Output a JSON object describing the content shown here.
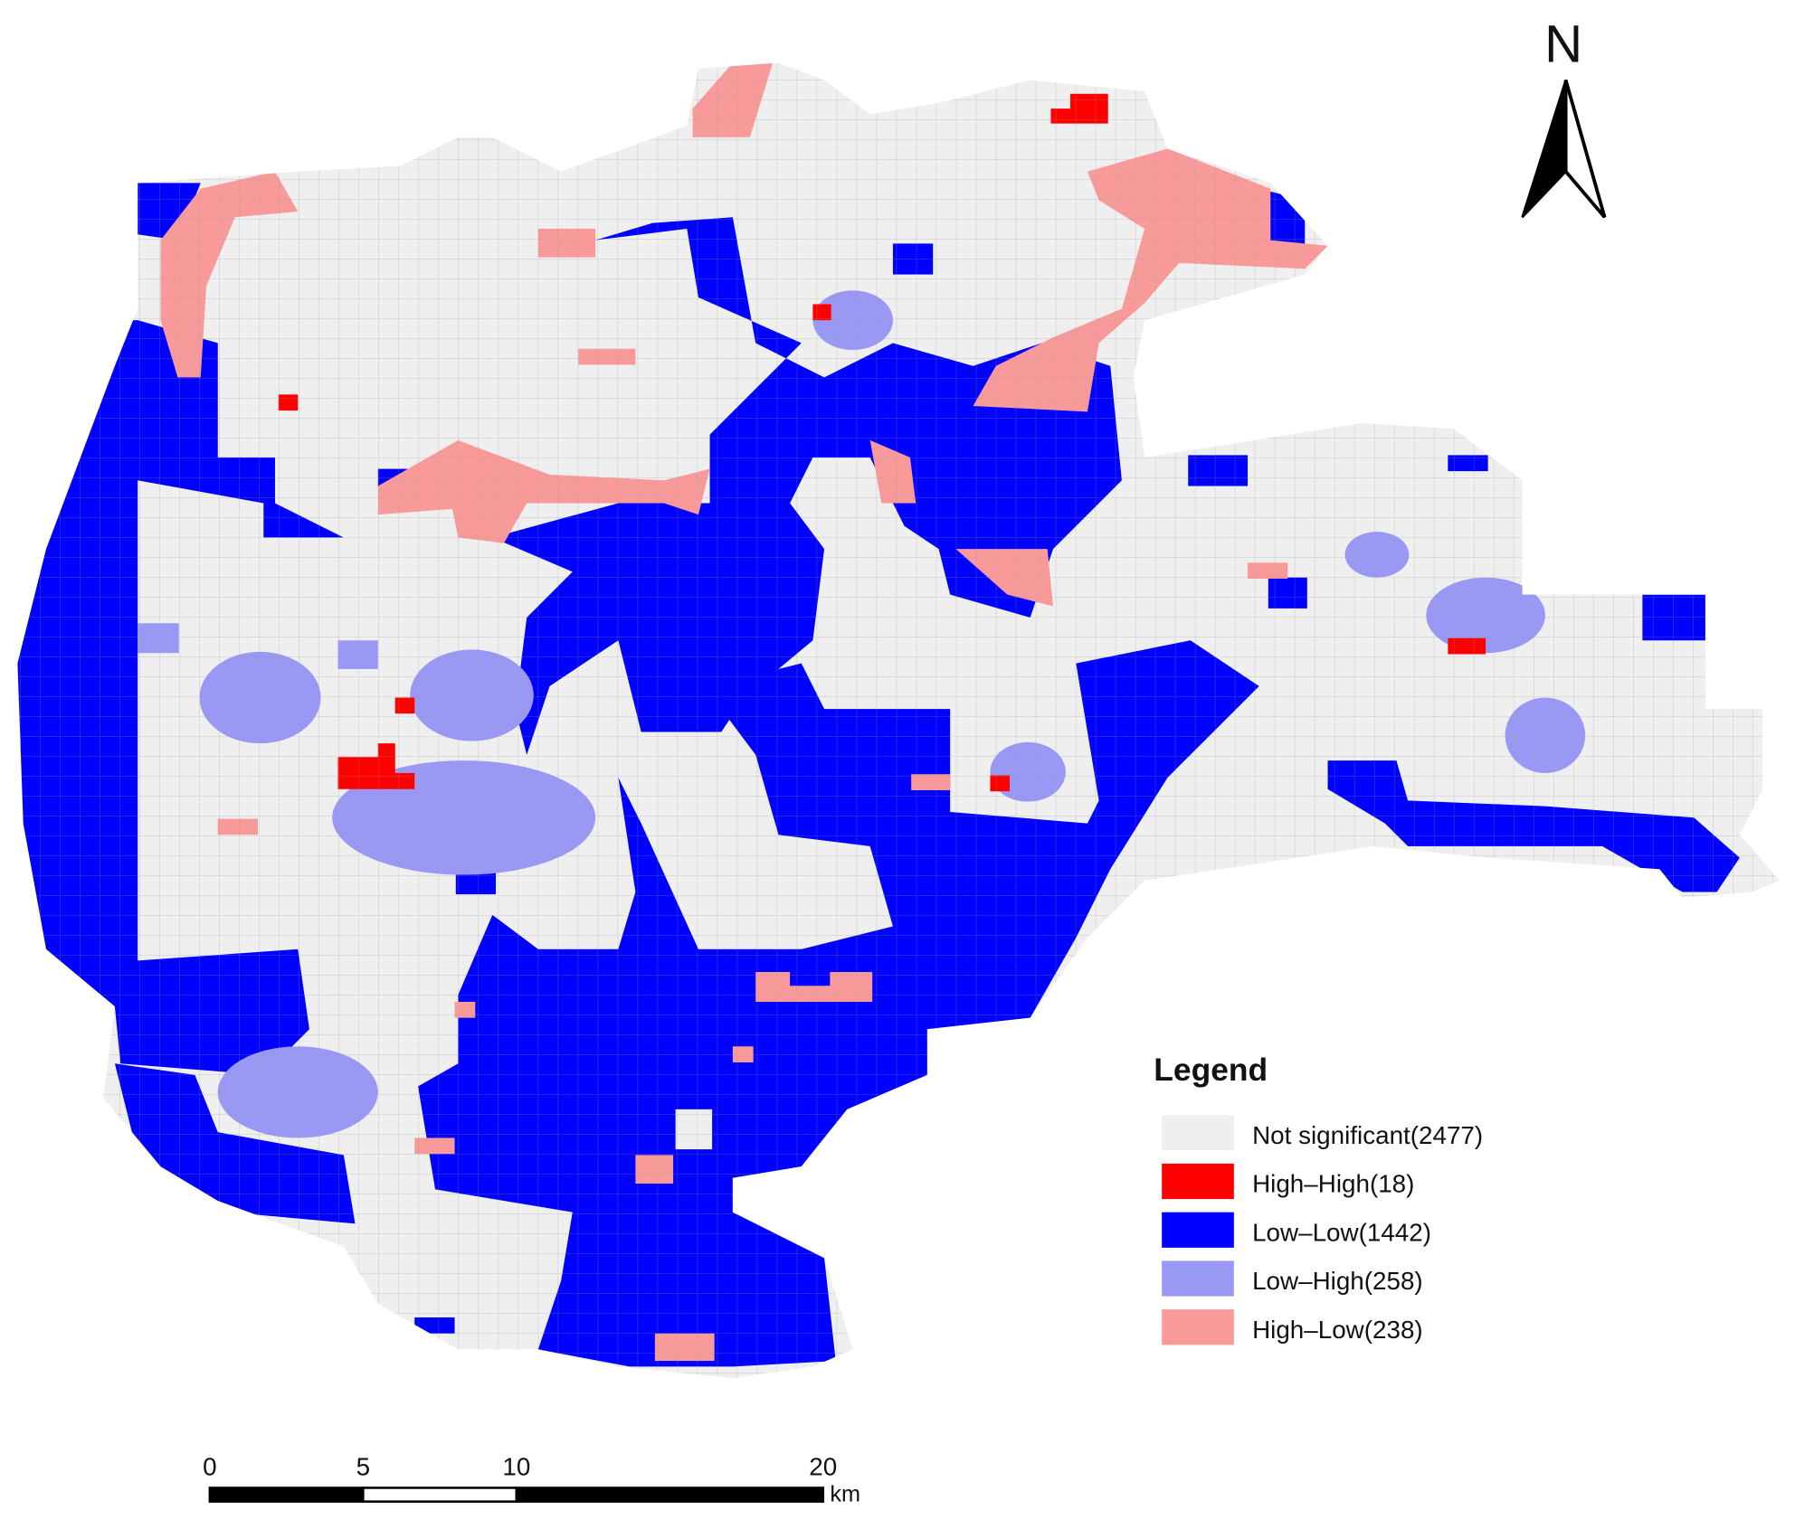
{
  "title": "Legend",
  "legend": [
    {
      "label": "Not significant(2477)",
      "color": "#efefef"
    },
    {
      "label": "High–High(18)",
      "color": "#ff0000"
    },
    {
      "label": "Low–Low(1442)",
      "color": "#0000ff"
    },
    {
      "label": "Low–High(258)",
      "color": "#9999f5"
    },
    {
      "label": "High–Low(238)",
      "color": "#f99a9a"
    }
  ],
  "north": "N",
  "scale_bar": {
    "ticks": [
      0,
      5,
      10,
      20
    ],
    "unit": "km"
  }
}
